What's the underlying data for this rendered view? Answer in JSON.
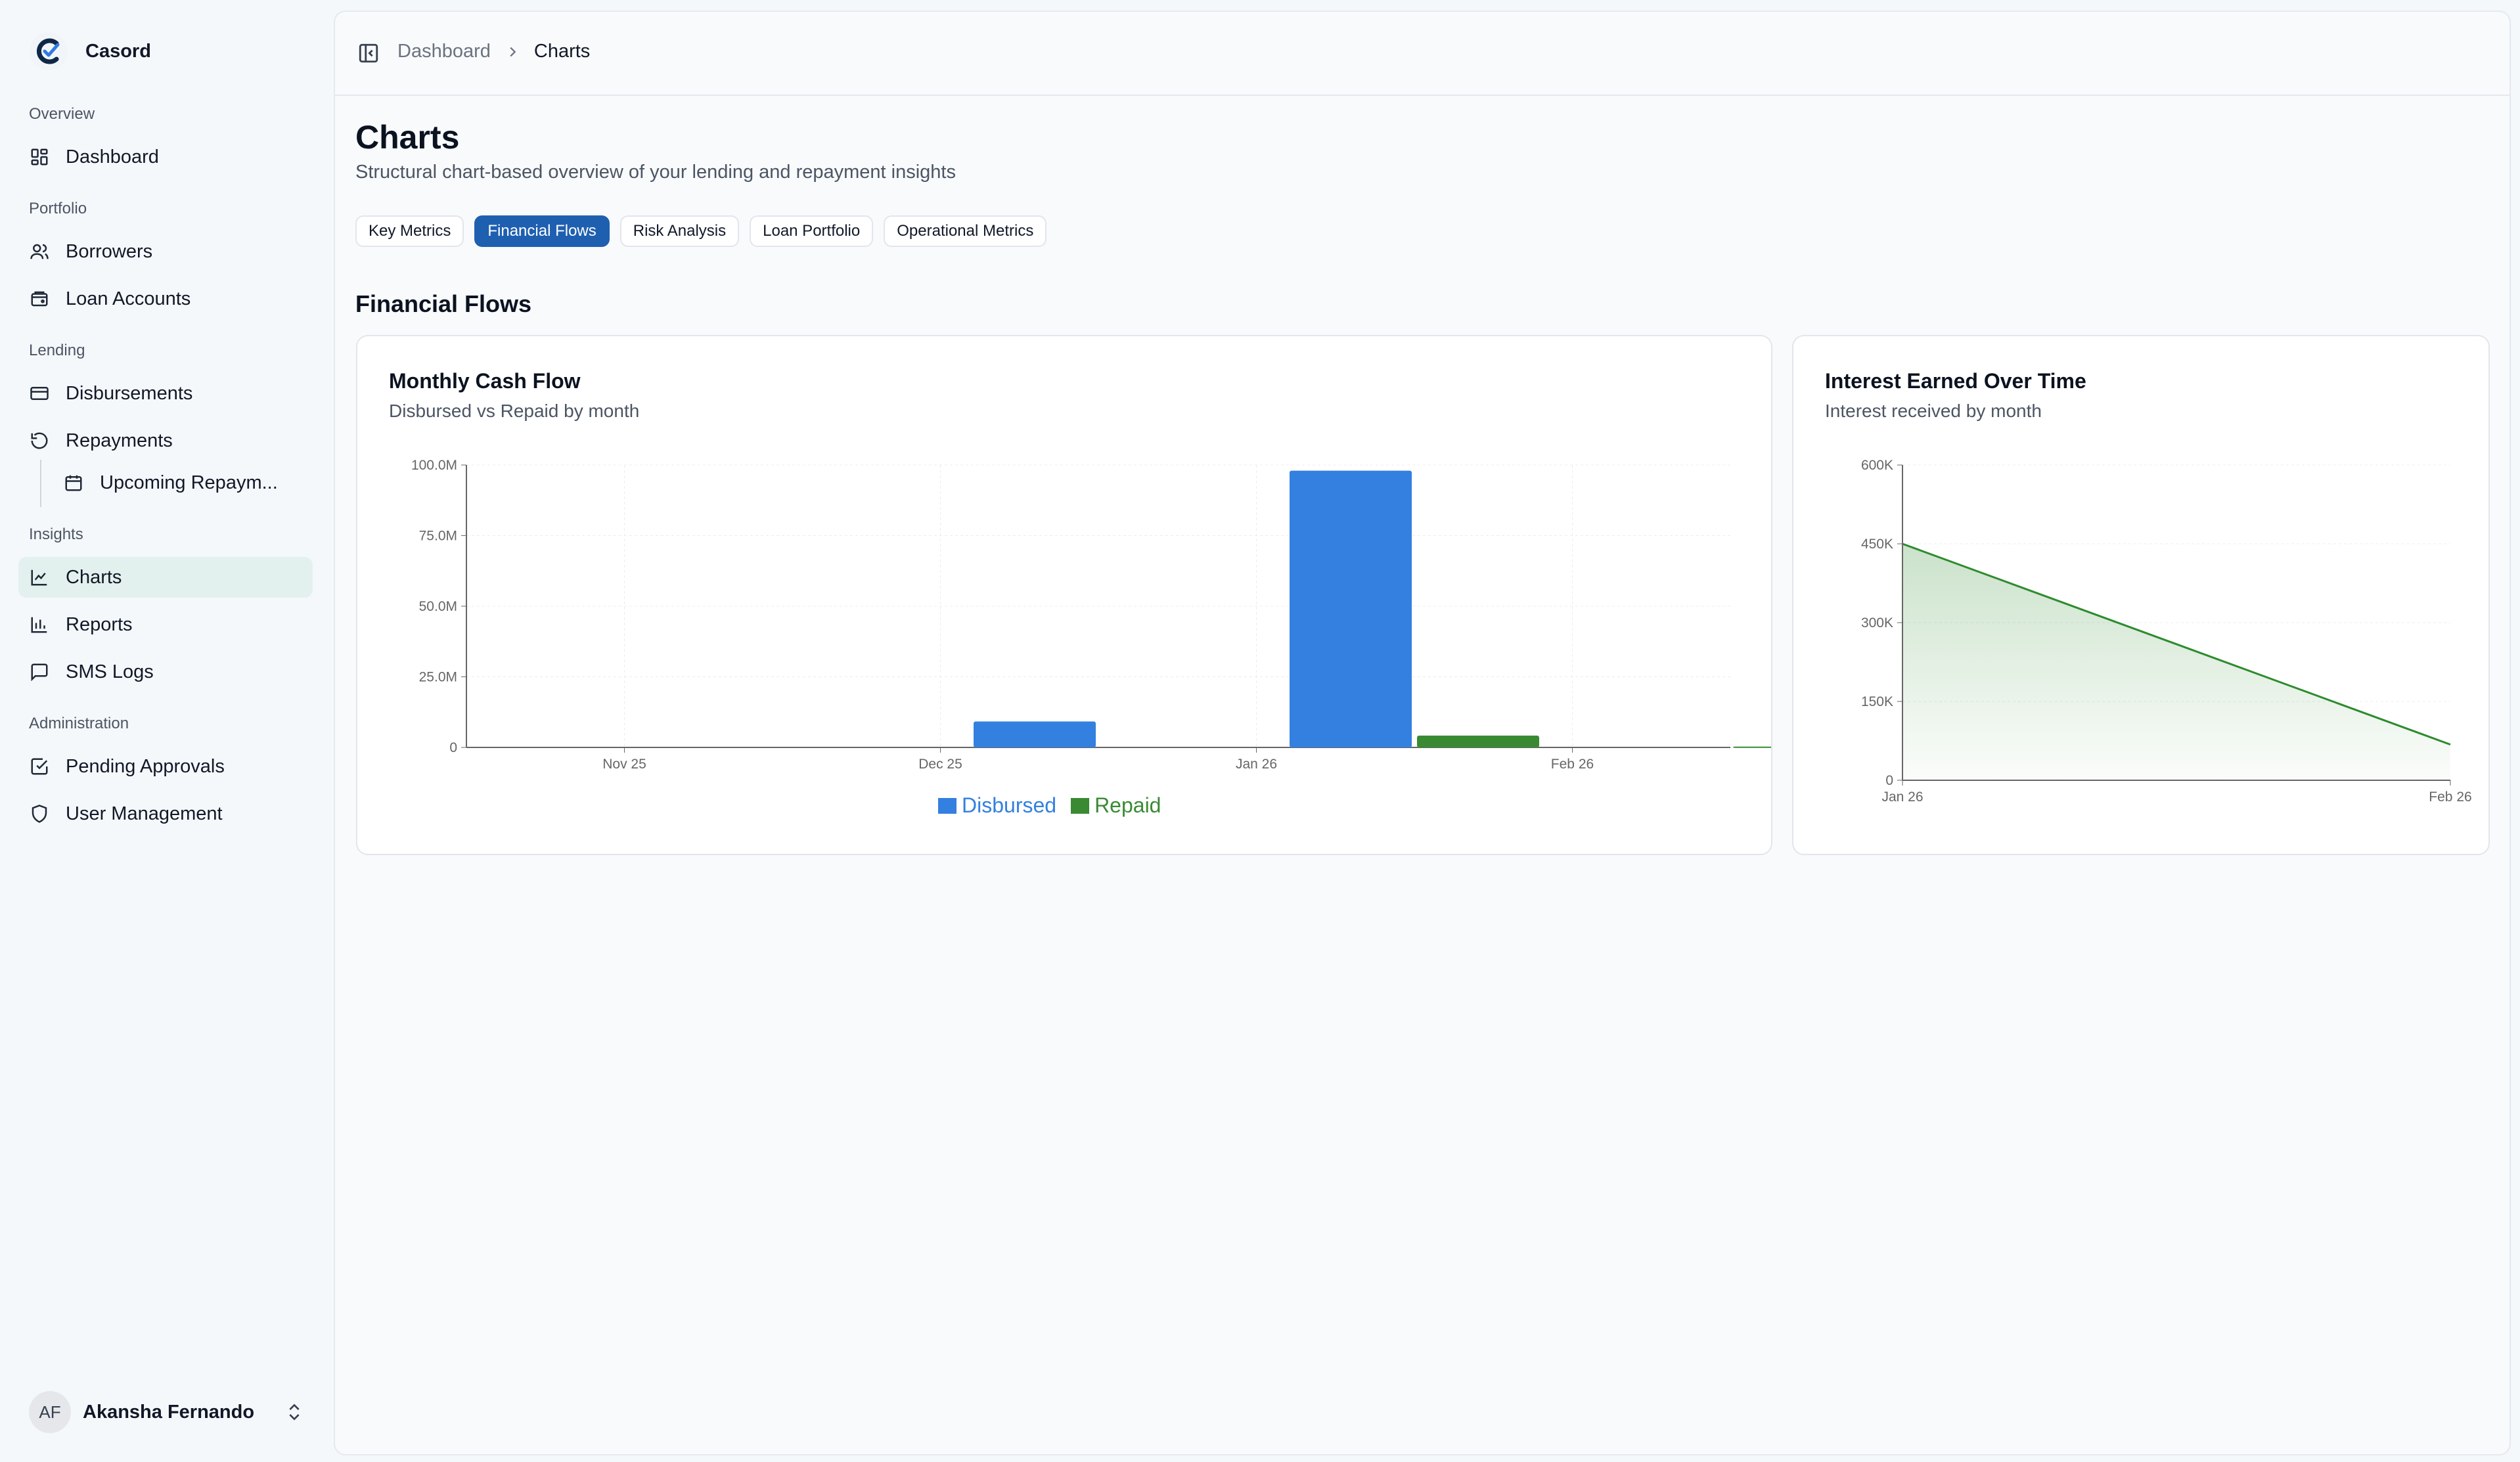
{
  "app": {
    "name": "Casord"
  },
  "sidebar": {
    "sections": [
      {
        "label": "Overview"
      },
      {
        "label": "Portfolio"
      },
      {
        "label": "Lending"
      },
      {
        "label": "Insights"
      },
      {
        "label": "Administration"
      }
    ],
    "items": {
      "dashboard": "Dashboard",
      "borrowers": "Borrowers",
      "loan_accounts": "Loan Accounts",
      "disbursements": "Disbursements",
      "repayments": "Repayments",
      "upcoming": "Upcoming Repaym...",
      "charts": "Charts",
      "reports": "Reports",
      "sms_logs": "SMS Logs",
      "pending_approvals": "Pending Approvals",
      "user_management": "User Management"
    },
    "user": {
      "initials": "AF",
      "name": "Akansha Fernando"
    }
  },
  "breadcrumb": {
    "parent": "Dashboard",
    "current": "Charts"
  },
  "page": {
    "title": "Charts",
    "subtitle": "Structural chart-based overview of your lending and repayment insights",
    "section_title": "Financial Flows"
  },
  "tabs": [
    {
      "label": "Key Metrics",
      "active": false
    },
    {
      "label": "Financial Flows",
      "active": true
    },
    {
      "label": "Risk Analysis",
      "active": false
    },
    {
      "label": "Loan Portfolio",
      "active": false
    },
    {
      "label": "Operational Metrics",
      "active": false
    }
  ],
  "colors": {
    "accent": "#1f5fb0",
    "disbursed": "#3380e0",
    "repaid": "#3a8a34",
    "interest": "#2e8b2e"
  },
  "chart_data": [
    {
      "type": "bar",
      "title": "Monthly Cash Flow",
      "subtitle": "Disbursed vs Repaid by month",
      "categories": [
        "Nov 25",
        "Dec 25",
        "Jan 26",
        "Feb 26"
      ],
      "series": [
        {
          "name": "Disbursed",
          "values": [
            0,
            9.2,
            98.0,
            0
          ]
        },
        {
          "name": "Repaid",
          "values": [
            0,
            0,
            4.2,
            0.3
          ]
        }
      ],
      "ylim": [
        0,
        100
      ],
      "yticks": [
        "0",
        "25.0M",
        "50.0M",
        "75.0M",
        "100.0M"
      ],
      "unit": "M",
      "grid": true,
      "legend": "bottom"
    },
    {
      "type": "area",
      "title": "Interest Earned Over Time",
      "subtitle": "Interest received by month",
      "x": [
        "Jan 26",
        "Feb 26"
      ],
      "values": [
        450000,
        68000
      ],
      "ylim": [
        0,
        600000
      ],
      "yticks": [
        "0",
        "150K",
        "300K",
        "450K",
        "600K"
      ],
      "grid": true
    }
  ]
}
